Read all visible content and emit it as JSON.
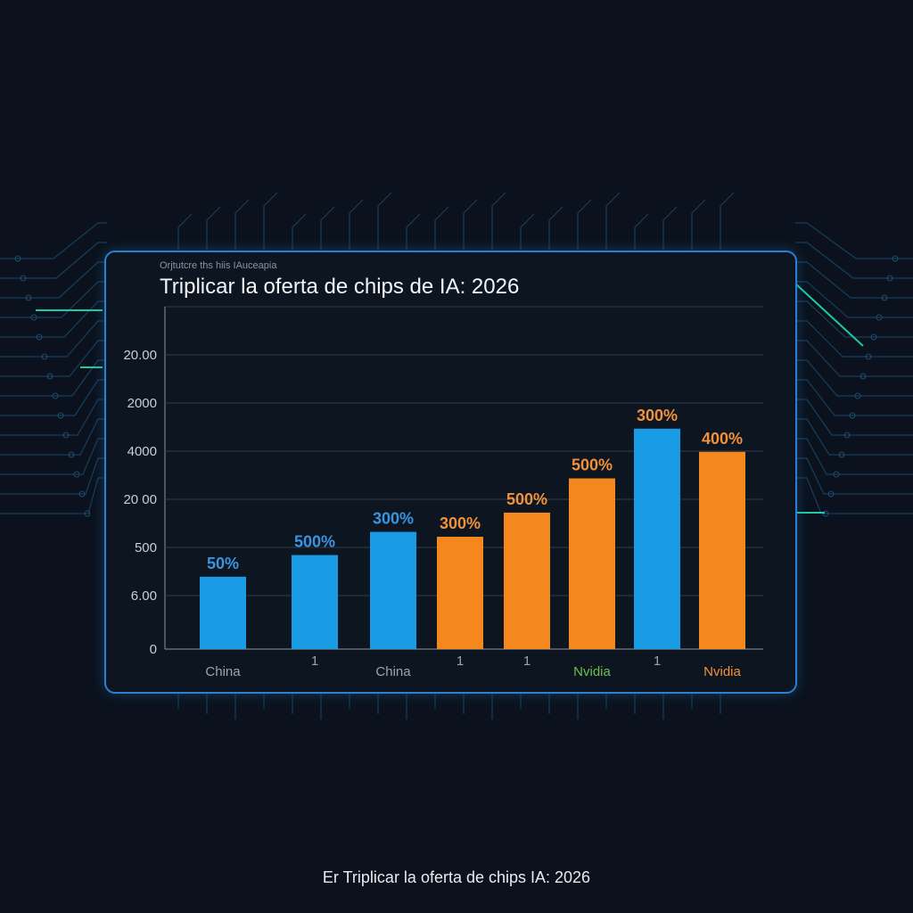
{
  "chart_data": {
    "type": "bar",
    "subtitle": "Orjtutcre ths hiis IAuceapia",
    "title": "Triplicar la oferta de chips de IA: 2026",
    "caption": "Er Triplicar la oferta de chips IA: 2026",
    "y_tick_labels": [
      "0",
      "6.00",
      "500",
      "20 00",
      "4000",
      "2000",
      "20.00"
    ],
    "x_labels": [
      "China",
      "1",
      "China",
      "1",
      "1",
      "Nvidia",
      "1",
      "Nvidia"
    ],
    "x_label_colors": [
      "#9aa3ae",
      "#9aa3ae",
      "#9aa3ae",
      "#9aa3ae",
      "#9aa3ae",
      "#6cc04a",
      "#9aa3ae",
      "#f0923a"
    ],
    "values": [
      1.5,
      1.95,
      2.43,
      2.33,
      2.83,
      3.54,
      4.57,
      4.09
    ],
    "value_labels": [
      "50%",
      "500%",
      "300%",
      "300%",
      "500%",
      "500%",
      "300%",
      "400%"
    ],
    "bar_colors": [
      "#1a9be6",
      "#1a9be6",
      "#1a9be6",
      "#f5871f",
      "#f5871f",
      "#f5871f",
      "#1a9be6",
      "#f5871f"
    ],
    "value_label_colors": [
      "#3a95e0",
      "#3a95e0",
      "#3a95e0",
      "#f0923a",
      "#f0923a",
      "#f0923a",
      "#f0923a",
      "#f0923a"
    ],
    "ylim": [
      0,
      7.1
    ],
    "grid": true
  }
}
